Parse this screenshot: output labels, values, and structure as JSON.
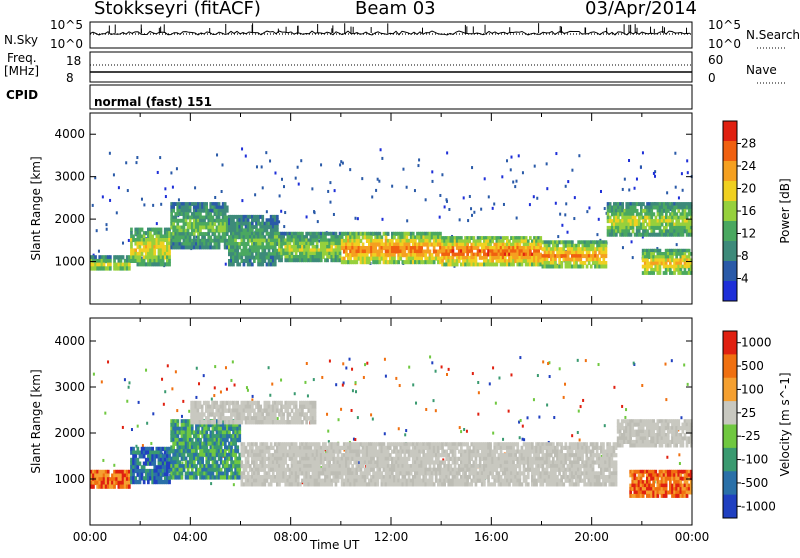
{
  "header": {
    "station": "Stokkseyri (fitACF)",
    "beam": "Beam 03",
    "date": "03/Apr/2014"
  },
  "strips": {
    "nsky_label": "N.Sky",
    "nsky_ticks": [
      "10^5",
      "10^0"
    ],
    "nsearch_label": "N.Search",
    "nsearch_ticks": [
      "10^5",
      "10^0"
    ],
    "freq_label_1": "Freq.",
    "freq_label_2": "[MHz]",
    "freq_ticks": [
      "18",
      "8"
    ],
    "nave_label": "Nave",
    "nave_ticks": [
      "60",
      "0"
    ],
    "cpid_label": "CPID",
    "cpid_text": "normal (fast) 151"
  },
  "chart_data": [
    {
      "type": "heatmap",
      "title": "Power",
      "ylabel": "Slant Range [km]",
      "xlabel": "",
      "colorbar_label": "Power [dB]",
      "colorbar_ticks": [
        "4",
        "8",
        "12",
        "16",
        "20",
        "24",
        "28"
      ],
      "colorbar_range": [
        0,
        32
      ],
      "colors": [
        "#1e2fd8",
        "#2a5aa8",
        "#3d8a7a",
        "#4aa860",
        "#96d03c",
        "#f0d020",
        "#f5a020",
        "#f06010",
        "#e02010"
      ],
      "xlim": [
        "00:00",
        "24:00"
      ],
      "ylim": [
        0,
        4500
      ],
      "yticks": [
        "1000",
        "2000",
        "3000",
        "4000"
      ],
      "bands": [
        {
          "t0": 0.0,
          "t1": 1.6,
          "r0": 800,
          "r1": 1150,
          "level": 0.55
        },
        {
          "t0": 1.6,
          "t1": 3.2,
          "r0": 900,
          "r1": 1800,
          "level": 0.65
        },
        {
          "t0": 3.2,
          "t1": 5.5,
          "r0": 1300,
          "r1": 2400,
          "level": 0.45
        },
        {
          "t0": 5.5,
          "t1": 7.5,
          "r0": 900,
          "r1": 2100,
          "level": 0.4
        },
        {
          "t0": 7.5,
          "t1": 10.0,
          "r0": 1000,
          "r1": 1700,
          "level": 0.55
        },
        {
          "t0": 10.0,
          "t1": 14.0,
          "r0": 950,
          "r1": 1700,
          "level": 0.85
        },
        {
          "t0": 14.0,
          "t1": 18.0,
          "r0": 900,
          "r1": 1600,
          "level": 0.9
        },
        {
          "t0": 18.0,
          "t1": 20.6,
          "r0": 850,
          "r1": 1500,
          "level": 0.8
        },
        {
          "t0": 20.6,
          "t1": 24.0,
          "r0": 1600,
          "r1": 2400,
          "level": 0.55
        },
        {
          "t0": 22.0,
          "t1": 24.0,
          "r0": 700,
          "r1": 1300,
          "level": 0.7
        }
      ]
    },
    {
      "type": "heatmap",
      "title": "Velocity",
      "ylabel": "Slant Range [km]",
      "xlabel": "Time UT",
      "colorbar_label": "Velocity [m s^-1]",
      "colorbar_ticks": [
        "1000",
        "500",
        "100",
        "25",
        "-25",
        "-100",
        "-500",
        "-1000"
      ],
      "colors": [
        "#2040c0",
        "#2a70a8",
        "#3a9a70",
        "#70c840",
        "#c8c8c0",
        "#f5a030",
        "#f07010",
        "#e02010"
      ],
      "xlim": [
        "00:00",
        "24:00"
      ],
      "xticks": [
        "00:00",
        "04:00",
        "08:00",
        "12:00",
        "16:00",
        "20:00",
        "00:00"
      ],
      "ylim": [
        0,
        4500
      ],
      "yticks": [
        "1000",
        "2000",
        "3000",
        "4000"
      ],
      "bands": [
        {
          "t0": 0.0,
          "t1": 1.6,
          "r0": 800,
          "r1": 1200,
          "class": "toward"
        },
        {
          "t0": 1.6,
          "t1": 3.2,
          "r0": 900,
          "r1": 1700,
          "class": "away"
        },
        {
          "t0": 3.2,
          "t1": 6.0,
          "r0": 1000,
          "r1": 2300,
          "class": "away_slow"
        },
        {
          "t0": 6.0,
          "t1": 21.0,
          "r0": 850,
          "r1": 1800,
          "class": "ground"
        },
        {
          "t0": 4.0,
          "t1": 9.0,
          "r0": 2200,
          "r1": 2700,
          "class": "ground"
        },
        {
          "t0": 21.0,
          "t1": 24.0,
          "r0": 1700,
          "r1": 2300,
          "class": "ground"
        },
        {
          "t0": 21.5,
          "t1": 24.0,
          "r0": 600,
          "r1": 1200,
          "class": "toward"
        }
      ]
    }
  ]
}
